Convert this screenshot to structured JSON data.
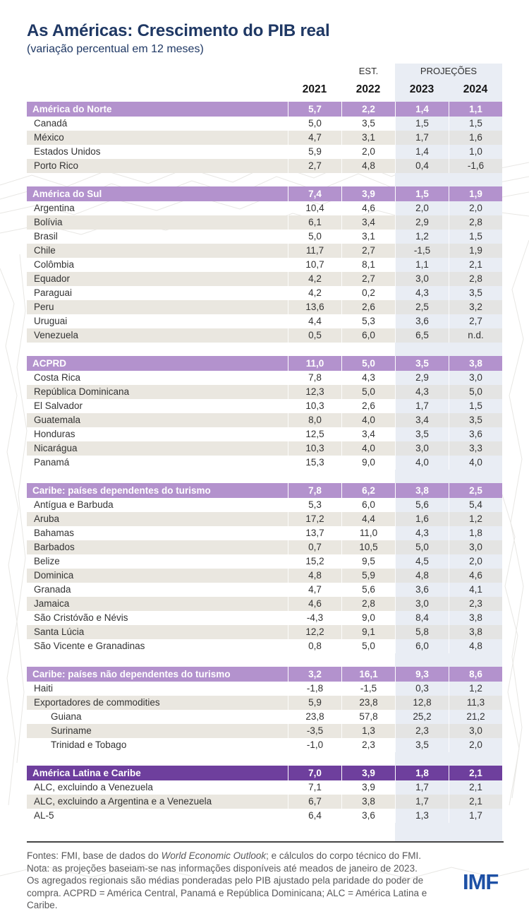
{
  "colors": {
    "title_navy": "#1f3864",
    "section_bar_light_purple": "#b392cd",
    "section_bar_dark_purple": "#6e3f9d",
    "projections_band_blue": "#e9edf4",
    "row_stripe_beige": "#eae7e0",
    "imf_logo_blue": "#1d50a5"
  },
  "chart_data": {
    "type": "table",
    "title": "As Américas: Crescimento do PIB real",
    "subtitle": "(variação percentual em 12 meses)",
    "est_label": "EST.",
    "proj_label": "PROJEÇÕES",
    "columns": [
      "2021",
      "2022",
      "2023",
      "2024"
    ],
    "sections": [
      {
        "label": "América do Norte",
        "tone": "light",
        "values": [
          "5,7",
          "2,2",
          "1,4",
          "1,1"
        ],
        "rows": [
          {
            "label": "Canadá",
            "values": [
              "5,0",
              "3,5",
              "1,5",
              "1,5"
            ]
          },
          {
            "label": "México",
            "values": [
              "4,7",
              "3,1",
              "1,7",
              "1,6"
            ]
          },
          {
            "label": "Estados Unidos",
            "values": [
              "5,9",
              "2,0",
              "1,4",
              "1,0"
            ]
          },
          {
            "label": "Porto Rico",
            "values": [
              "2,7",
              "4,8",
              "0,4",
              "-1,6"
            ]
          }
        ]
      },
      {
        "label": "América do Sul",
        "tone": "light",
        "values": [
          "7,4",
          "3,9",
          "1,5",
          "1,9"
        ],
        "rows": [
          {
            "label": "Argentina",
            "values": [
              "10,4",
              "4,6",
              "2,0",
              "2,0"
            ]
          },
          {
            "label": "Bolívia",
            "values": [
              "6,1",
              "3,4",
              "2,9",
              "2,8"
            ]
          },
          {
            "label": "Brasil",
            "values": [
              "5,0",
              "3,1",
              "1,2",
              "1,5"
            ]
          },
          {
            "label": "Chile",
            "values": [
              "11,7",
              "2,7",
              "-1,5",
              "1,9"
            ]
          },
          {
            "label": "Colômbia",
            "values": [
              "10,7",
              "8,1",
              "1,1",
              "2,1"
            ]
          },
          {
            "label": "Equador",
            "values": [
              "4,2",
              "2,7",
              "3,0",
              "2,8"
            ]
          },
          {
            "label": "Paraguai",
            "values": [
              "4,2",
              "0,2",
              "4,3",
              "3,5"
            ]
          },
          {
            "label": "Peru",
            "values": [
              "13,6",
              "2,6",
              "2,5",
              "3,2"
            ]
          },
          {
            "label": "Uruguai",
            "values": [
              "4,4",
              "5,3",
              "3,6",
              "2,7"
            ]
          },
          {
            "label": "Venezuela",
            "values": [
              "0,5",
              "6,0",
              "6,5",
              "n.d."
            ]
          }
        ]
      },
      {
        "label": "ACPRD",
        "tone": "light",
        "values": [
          "11,0",
          "5,0",
          "3,5",
          "3,8"
        ],
        "rows": [
          {
            "label": "Costa Rica",
            "values": [
              "7,8",
              "4,3",
              "2,9",
              "3,0"
            ]
          },
          {
            "label": "República Dominicana",
            "values": [
              "12,3",
              "5,0",
              "4,3",
              "5,0"
            ]
          },
          {
            "label": "El Salvador",
            "values": [
              "10,3",
              "2,6",
              "1,7",
              "1,5"
            ]
          },
          {
            "label": "Guatemala",
            "values": [
              "8,0",
              "4,0",
              "3,4",
              "3,5"
            ]
          },
          {
            "label": "Honduras",
            "values": [
              "12,5",
              "3,4",
              "3,5",
              "3,6"
            ]
          },
          {
            "label": "Nicarágua",
            "values": [
              "10,3",
              "4,0",
              "3,0",
              "3,3"
            ]
          },
          {
            "label": "Panamá",
            "values": [
              "15,3",
              "9,0",
              "4,0",
              "4,0"
            ]
          }
        ]
      },
      {
        "label": "Caribe: países dependentes do turismo",
        "tone": "light",
        "values": [
          "7,8",
          "6,2",
          "3,8",
          "2,5"
        ],
        "rows": [
          {
            "label": "Antígua e Barbuda",
            "values": [
              "5,3",
              "6,0",
              "5,6",
              "5,4"
            ]
          },
          {
            "label": "Aruba",
            "values": [
              "17,2",
              "4,4",
              "1,6",
              "1,2"
            ]
          },
          {
            "label": "Bahamas",
            "values": [
              "13,7",
              "11,0",
              "4,3",
              "1,8"
            ]
          },
          {
            "label": "Barbados",
            "values": [
              "0,7",
              "10,5",
              "5,0",
              "3,0"
            ]
          },
          {
            "label": "Belize",
            "values": [
              "15,2",
              "9,5",
              "4,5",
              "2,0"
            ]
          },
          {
            "label": "Dominica",
            "values": [
              "4,8",
              "5,9",
              "4,8",
              "4,6"
            ]
          },
          {
            "label": "Granada",
            "values": [
              "4,7",
              "5,6",
              "3,6",
              "4,1"
            ]
          },
          {
            "label": "Jamaica",
            "values": [
              "4,6",
              "2,8",
              "3,0",
              "2,3"
            ]
          },
          {
            "label": "São Cristóvão e Névis",
            "values": [
              "-4,3",
              "9,0",
              "8,4",
              "3,8"
            ]
          },
          {
            "label": "Santa Lúcia",
            "values": [
              "12,2",
              "9,1",
              "5,8",
              "3,8"
            ]
          },
          {
            "label": "São Vicente e Granadinas",
            "values": [
              "0,8",
              "5,0",
              "6,0",
              "4,8"
            ]
          }
        ]
      },
      {
        "label": "Caribe: países não dependentes do turismo",
        "tone": "light",
        "values": [
          "3,2",
          "16,1",
          "9,3",
          "8,6"
        ],
        "rows": [
          {
            "label": "Haiti",
            "values": [
              "-1,8",
              "-1,5",
              "0,3",
              "1,2"
            ]
          },
          {
            "label": "Exportadores de commodities",
            "values": [
              "5,9",
              "23,8",
              "12,8",
              "11,3"
            ]
          },
          {
            "label": "Guiana",
            "indent": true,
            "values": [
              "23,8",
              "57,8",
              "25,2",
              "21,2"
            ]
          },
          {
            "label": "Suriname",
            "indent": true,
            "values": [
              "-3,5",
              "1,3",
              "2,3",
              "3,0"
            ]
          },
          {
            "label": "Trinidad e Tobago",
            "indent": true,
            "values": [
              "-1,0",
              "2,3",
              "3,5",
              "2,0"
            ]
          }
        ]
      },
      {
        "label": "América Latina e Caribe",
        "tone": "dark",
        "values": [
          "7,0",
          "3,9",
          "1,8",
          "2,1"
        ],
        "rows": [
          {
            "label": "ALC, excluindo a Venezuela",
            "values": [
              "7,1",
              "3,9",
              "1,7",
              "2,1"
            ]
          },
          {
            "label": "ALC, excluindo a Argentina e a Venezuela",
            "values": [
              "6,7",
              "3,8",
              "1,7",
              "2,1"
            ]
          },
          {
            "label": "AL-5",
            "values": [
              "6,4",
              "3,6",
              "1,3",
              "1,7"
            ]
          }
        ]
      }
    ]
  },
  "footer": {
    "source_prefix": "Fontes: FMI, base de dados do ",
    "source_italic": "World Economic Outlook",
    "source_suffix": "; e cálculos do corpo técnico do FMI.",
    "note": "Nota: as projeções baseiam-se nas informações disponíveis até meados de janeiro de 2023.",
    "aggregates_note": "Os agregados regionais são médias ponderadas pelo PIB ajustado pela paridade do poder de compra. ACPRD = América Central, Panamá e República Dominicana; ALC = América Latina e Caribe.",
    "logo_text": "IMF"
  }
}
